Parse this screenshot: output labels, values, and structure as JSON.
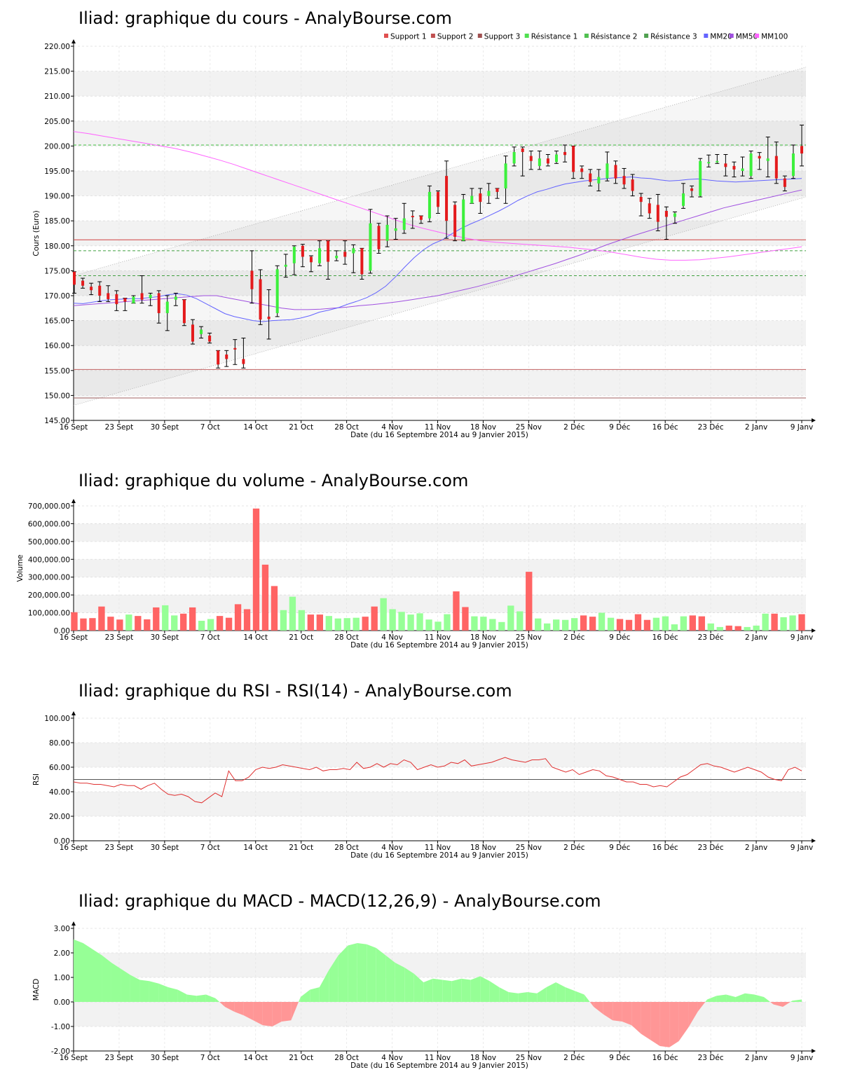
{
  "x_ticks": [
    "16 Sept",
    "23 Sept",
    "30 Sept",
    "7 Oct",
    "14 Oct",
    "21 Oct",
    "28 Oct",
    "4 Nov",
    "11 Nov",
    "18 Nov",
    "25 Nov",
    "2 Déc",
    "9 Déc",
    "16 Déc",
    "23 Déc",
    "2 Janv",
    "9 Janv"
  ],
  "x_label": "Date (du 16 Septembre 2014 au 9 Janvier 2015)",
  "colors": {
    "up": "#3cf03c",
    "down": "#e41a1c",
    "vol_up": "#96ff96",
    "vol_down": "#ff6464",
    "rsi": "#e03030",
    "macd_pos": "#96ff96",
    "macd_neg": "#ff9696",
    "mm20": "#6464ff",
    "mm50": "#a050e0",
    "mm100": "#ff64ff"
  },
  "chart_data": [
    {
      "id": "price",
      "type": "candlestick",
      "title": "Iliad: graphique du cours - AnalyBourse.com",
      "ylabel": "Cours (Euro)",
      "ylim": [
        145,
        220
      ],
      "yticks": [
        "145.00",
        "150.00",
        "155.00",
        "160.00",
        "165.00",
        "170.00",
        "175.00",
        "180.00",
        "185.00",
        "190.00",
        "195.00",
        "200.00",
        "205.00",
        "210.00",
        "215.00",
        "220.00"
      ],
      "legend": [
        "Support 1",
        "Support 2",
        "Support 3",
        "Résistance 1",
        "Résistance 2",
        "Résistance 3",
        "MM20",
        "MM50",
        "MM100"
      ],
      "legend_colors": [
        "#e05050",
        "#c05050",
        "#a05050",
        "#50e050",
        "#50c050",
        "#50a050",
        "#6464ff",
        "#a050e0",
        "#ff64ff"
      ],
      "supports": [
        181.2,
        155.2,
        149.5
      ],
      "resistances": [
        200.2,
        179.0,
        174.0
      ],
      "channel": {
        "upper": [
          174,
          215.8
        ],
        "lower": [
          148,
          189.8
        ]
      },
      "candles": [
        [
          174.8,
          172.2,
          170.5,
          174.8
        ],
        [
          173,
          172,
          171.5,
          173.5
        ],
        [
          171.8,
          171.1,
          170.2,
          172.5
        ],
        [
          172,
          170,
          168.8,
          172.8
        ],
        [
          170.5,
          169.3,
          168.8,
          172
        ],
        [
          170.3,
          168.3,
          167,
          171
        ],
        [
          169.5,
          168.8,
          167,
          169.5
        ],
        [
          168.5,
          169.8,
          168.5,
          170
        ],
        [
          170.5,
          169.2,
          168.5,
          174
        ],
        [
          169.5,
          170.2,
          168,
          170.5
        ],
        [
          170.5,
          166.5,
          164.5,
          171
        ],
        [
          166.5,
          168.8,
          163,
          170
        ],
        [
          169.2,
          169.8,
          168,
          170.5
        ],
        [
          169.2,
          164.5,
          164,
          169.2
        ],
        [
          164.2,
          160.8,
          160.3,
          165.2
        ],
        [
          162.3,
          163.2,
          161.5,
          163.8
        ],
        [
          162,
          160.8,
          160.5,
          162.5
        ],
        [
          159,
          156.2,
          155.5,
          159
        ],
        [
          158.2,
          157.3,
          155.8,
          159
        ],
        [
          159.5,
          159.2,
          156.2,
          161.2
        ],
        [
          157.3,
          156.3,
          155.5,
          161.5
        ],
        [
          175,
          171.3,
          168.5,
          179
        ],
        [
          173.3,
          165.2,
          164.2,
          175.2
        ],
        [
          165.8,
          165.3,
          161.3,
          171.2
        ],
        [
          166.5,
          175.3,
          165.8,
          176
        ],
        [
          175.8,
          176.2,
          173.7,
          178.3
        ],
        [
          176.5,
          179.8,
          174.2,
          180
        ],
        [
          180,
          177.8,
          175.8,
          180.3
        ],
        [
          177.8,
          176.7,
          174.8,
          178
        ],
        [
          176.5,
          179.5,
          176,
          181
        ],
        [
          181,
          176.8,
          173.3,
          181
        ],
        [
          177.5,
          178,
          177,
          179
        ],
        [
          178.8,
          177.8,
          176.3,
          181
        ],
        [
          178.5,
          179.5,
          174.6,
          180.2
        ],
        [
          179.5,
          174.3,
          173.3,
          179.5
        ],
        [
          175,
          184.5,
          174.5,
          187.3
        ],
        [
          184,
          179.3,
          178.5,
          184.5
        ],
        [
          181,
          184.2,
          179.8,
          186
        ],
        [
          183,
          183.5,
          181.3,
          185.5
        ],
        [
          183.2,
          185.5,
          182.5,
          188.5
        ],
        [
          186,
          185.8,
          183.5,
          187
        ],
        [
          186,
          185.2,
          184.5,
          186
        ],
        [
          185.5,
          190.8,
          184.8,
          192
        ],
        [
          190.8,
          187.8,
          186.5,
          191
        ],
        [
          194,
          185,
          181.5,
          197
        ],
        [
          188.2,
          181.8,
          181,
          188.8
        ],
        [
          181,
          189.3,
          181,
          190.3
        ],
        [
          188.5,
          190,
          188.5,
          191.5
        ],
        [
          190.5,
          188.8,
          186.5,
          191.5
        ],
        [
          190,
          191,
          188.5,
          192.5
        ],
        [
          191.5,
          190.8,
          189.5,
          191.5
        ],
        [
          191.5,
          196.5,
          188.5,
          198
        ],
        [
          196.5,
          198.8,
          196,
          199.8
        ],
        [
          199.5,
          198.8,
          194,
          199.8
        ],
        [
          198,
          197,
          195.3,
          199
        ],
        [
          196,
          197.5,
          195.3,
          199
        ],
        [
          197.5,
          196.5,
          196,
          198.3
        ],
        [
          196.8,
          198.3,
          196.5,
          199
        ],
        [
          198.8,
          198.2,
          196.8,
          200.2
        ],
        [
          200,
          194.8,
          193.5,
          200
        ],
        [
          195.5,
          194.8,
          193.5,
          196
        ],
        [
          194.5,
          192.8,
          192,
          195.3
        ],
        [
          192.5,
          193.8,
          191,
          195.3
        ],
        [
          193.5,
          196.5,
          193,
          198.8
        ],
        [
          196.2,
          193.5,
          192.5,
          197
        ],
        [
          194,
          192.3,
          191.5,
          195.5
        ],
        [
          193.3,
          191,
          190,
          194.3
        ],
        [
          189.8,
          188.8,
          186,
          190.5
        ],
        [
          188.5,
          186.5,
          185.5,
          189.5
        ],
        [
          188.2,
          184.8,
          183,
          190.3
        ],
        [
          187,
          185.8,
          181.3,
          187.8
        ],
        [
          185.8,
          186.5,
          184.5,
          186.8
        ],
        [
          188,
          190.5,
          187.5,
          192.5
        ],
        [
          191.5,
          191,
          189.8,
          192
        ],
        [
          190,
          197,
          189.8,
          197.5
        ],
        [
          196.8,
          196.8,
          195.8,
          198.2
        ],
        [
          197,
          197,
          196.5,
          198.3
        ],
        [
          196.5,
          195.8,
          194,
          198.3
        ],
        [
          196,
          195.3,
          193.8,
          196.8
        ],
        [
          195,
          195.5,
          194,
          197.8
        ],
        [
          194,
          198.5,
          193.5,
          199
        ],
        [
          198,
          197.5,
          195.3,
          198.7
        ],
        [
          197,
          197.5,
          193.8,
          201.8
        ],
        [
          198,
          193.5,
          192.5,
          200.8
        ],
        [
          193.5,
          191.8,
          191,
          194
        ],
        [
          194,
          198.5,
          193.5,
          200.2
        ],
        [
          200,
          198.5,
          196,
          204.2
        ]
      ],
      "mm20": [
        168.5,
        168.4,
        168.7,
        169.0,
        169.2,
        169.3,
        169.4,
        169.4,
        169.6,
        169.8,
        170.2,
        170.4,
        170.1,
        169.4,
        168.4,
        167.4,
        166.4,
        165.8,
        165.4,
        165.0,
        164.8,
        165.0,
        165.1,
        165.2,
        165.5,
        166.0,
        166.7,
        167.1,
        167.6,
        168.3,
        168.9,
        169.6,
        170.6,
        171.9,
        173.7,
        175.7,
        177.6,
        179.2,
        180.4,
        181.2,
        182.4,
        183.5,
        184.4,
        185.2,
        186.1,
        187.0,
        188.0,
        189.1,
        190.0,
        190.8,
        191.3,
        191.9,
        192.4,
        192.7,
        193.0,
        193.2,
        193.4,
        193.6,
        193.7,
        193.8,
        193.6,
        193.5,
        193.2,
        193.0,
        193.1,
        193.3,
        193.4,
        193.2,
        193.0,
        192.9,
        192.8,
        192.9,
        193.0,
        193.1,
        193.2,
        193.3,
        193.4,
        193.5
      ],
      "mm50": [
        168.0,
        168.2,
        168.4,
        168.6,
        168.8,
        169.0,
        169.2,
        169.4,
        169.6,
        169.8,
        170.0,
        170.0,
        169.5,
        169.0,
        168.5,
        168.0,
        167.5,
        167.2,
        167.2,
        167.3,
        167.5,
        167.7,
        168.0,
        168.2,
        168.5,
        168.8,
        169.2,
        169.6,
        170.0,
        170.6,
        171.2,
        171.8,
        172.5,
        173.2,
        174.0,
        174.8,
        175.6,
        176.4,
        177.3,
        178.2,
        179.2,
        180.2,
        181.1,
        182.0,
        182.8,
        183.6,
        184.4,
        185.2,
        186.0,
        186.8,
        187.6,
        188.2,
        188.8,
        189.4,
        190.0,
        190.6,
        191.2
      ],
      "mm100": [
        202.9,
        202.5,
        202.0,
        201.5,
        201.0,
        200.5,
        200.0,
        199.5,
        198.8,
        198.0,
        197.2,
        196.3,
        195.3,
        194.3,
        193.3,
        192.3,
        191.3,
        190.3,
        189.3,
        188.3,
        187.3,
        186.3,
        185.3,
        184.3,
        183.5,
        182.8,
        182.1,
        181.5,
        181.0,
        180.7,
        180.5,
        180.3,
        180.1,
        179.9,
        179.7,
        179.4,
        179.1,
        178.7,
        178.2,
        177.7,
        177.3,
        177.1,
        177.1,
        177.2,
        177.5,
        177.8,
        178.2,
        178.6,
        179.0,
        179.4,
        179.8
      ]
    },
    {
      "id": "volume",
      "type": "bar",
      "title": "Iliad: graphique du volume - AnalyBourse.com",
      "ylabel": "Volume",
      "ylim": [
        0,
        700000
      ],
      "yticks": [
        "0.00",
        "100,000.00",
        "200,000.00",
        "300,000.00",
        "400,000.00",
        "500,000.00",
        "600,000.00",
        "700,000.00"
      ],
      "values": [
        103000,
        68000,
        70000,
        135000,
        78000,
        62000,
        90000,
        82000,
        63000,
        130000,
        142000,
        85000,
        95000,
        130000,
        55000,
        65000,
        82000,
        72000,
        148000,
        120000,
        685000,
        370000,
        250000,
        115000,
        190000,
        115000,
        90000,
        90000,
        82000,
        68000,
        70000,
        72000,
        78000,
        135000,
        182000,
        120000,
        105000,
        90000,
        97000,
        62000,
        50000,
        92000,
        220000,
        132000,
        80000,
        78000,
        65000,
        48000,
        140000,
        108000,
        330000,
        68000,
        40000,
        62000,
        60000,
        70000,
        85000,
        78000,
        100000,
        72000,
        65000,
        60000,
        92000,
        60000,
        72000,
        80000,
        35000,
        80000,
        85000,
        80000,
        40000,
        20000,
        28000,
        25000,
        20000,
        28000,
        95000,
        95000,
        75000,
        85000,
        92000
      ],
      "up": [
        0,
        0,
        0,
        0,
        0,
        0,
        1,
        0,
        0,
        0,
        1,
        1,
        0,
        0,
        1,
        1,
        0,
        0,
        0,
        0,
        0,
        0,
        0,
        1,
        1,
        1,
        0,
        0,
        1,
        1,
        1,
        1,
        0,
        0,
        1,
        1,
        1,
        1,
        1,
        1,
        1,
        1,
        0,
        0,
        1,
        1,
        1,
        1,
        1,
        1,
        0,
        1,
        1,
        1,
        1,
        1,
        0,
        0,
        1,
        1,
        0,
        0,
        0,
        0,
        1,
        1,
        1,
        1,
        0,
        0,
        1,
        1,
        0,
        0,
        1,
        1,
        1,
        0,
        1,
        1,
        0
      ]
    },
    {
      "id": "rsi",
      "type": "line",
      "title": "Iliad: graphique du RSI - RSI(14) - AnalyBourse.com",
      "ylabel": "RSI",
      "ylim": [
        0,
        100
      ],
      "yticks": [
        "0.00",
        "20.00",
        "40.00",
        "60.00",
        "80.00",
        "100.00"
      ],
      "reference": 50,
      "values": [
        48,
        47,
        47,
        46,
        46,
        45,
        44,
        46,
        45,
        45,
        42,
        45,
        47,
        42,
        38,
        37,
        38,
        36,
        32,
        31,
        35,
        39,
        36,
        57,
        49,
        49,
        52,
        58,
        60,
        59,
        60,
        62,
        61,
        60,
        59,
        58,
        60,
        57,
        58,
        58,
        59,
        58,
        64,
        59,
        60,
        63,
        60,
        63,
        62,
        66,
        64,
        58,
        60,
        62,
        60,
        61,
        64,
        63,
        66,
        61,
        62,
        63,
        64,
        66,
        68,
        66,
        65,
        64,
        66,
        66,
        67,
        60,
        58,
        56,
        58,
        54,
        56,
        58,
        57,
        53,
        52,
        50,
        48,
        48,
        46,
        46,
        44,
        45,
        44,
        48,
        52,
        54,
        58,
        62,
        63,
        61,
        60,
        58,
        56,
        58,
        60,
        58,
        56,
        52,
        50,
        49,
        58,
        60,
        57
      ],
      "channel_band": [
        60,
        80
      ]
    },
    {
      "id": "macd",
      "type": "area",
      "title": "Iliad: graphique du MACD - MACD(12,26,9) - AnalyBourse.com",
      "ylabel": "MACD",
      "ylim": [
        -2,
        3
      ],
      "yticks": [
        "-2.00",
        "-1.00",
        "0.00",
        "1.00",
        "2.00",
        "3.00"
      ],
      "values": [
        2.55,
        2.4,
        2.15,
        1.9,
        1.6,
        1.35,
        1.1,
        0.9,
        0.85,
        0.75,
        0.6,
        0.5,
        0.3,
        0.25,
        0.3,
        0.15,
        -0.2,
        -0.4,
        -0.55,
        -0.75,
        -0.95,
        -1.0,
        -0.8,
        -0.75,
        0.2,
        0.5,
        0.6,
        1.3,
        1.9,
        2.3,
        2.4,
        2.35,
        2.2,
        1.9,
        1.6,
        1.4,
        1.15,
        0.8,
        0.95,
        0.9,
        0.85,
        0.95,
        0.9,
        1.05,
        0.85,
        0.6,
        0.4,
        0.35,
        0.4,
        0.35,
        0.6,
        0.8,
        0.6,
        0.45,
        0.3,
        -0.2,
        -0.5,
        -0.75,
        -0.8,
        -0.95,
        -1.3,
        -1.55,
        -1.8,
        -1.85,
        -1.6,
        -1.05,
        -0.4,
        0.1,
        0.25,
        0.3,
        0.2,
        0.35,
        0.3,
        0.2,
        -0.1,
        -0.2,
        0.05,
        0.1
      ]
    }
  ]
}
